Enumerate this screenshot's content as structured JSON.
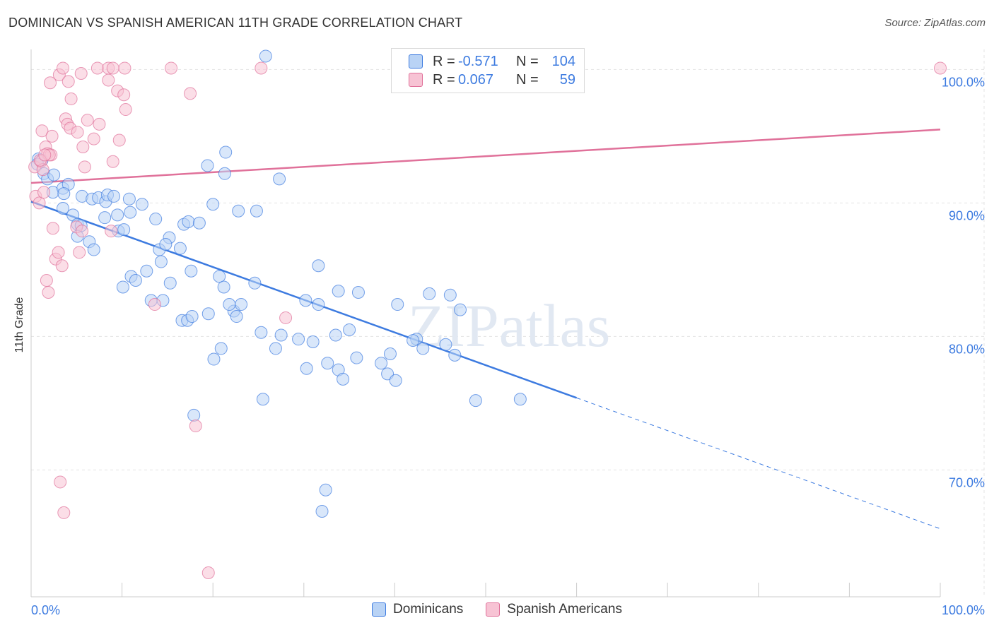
{
  "header": {
    "title": "DOMINICAN VS SPANISH AMERICAN 11TH GRADE CORRELATION CHART",
    "source": "Source: ZipAtlas.com"
  },
  "colors": {
    "blue": "#3d7be0",
    "blue_fill": "#b9d3f5",
    "pink": "#e0719a",
    "pink_fill": "#f7c3d4",
    "grid": "#e3e3e3",
    "axis_text": "#3d7be0"
  },
  "legend": {
    "rows": [
      {
        "r_label": "R =",
        "r_value": "-0.571",
        "n_label": "N =",
        "n_value": "104"
      },
      {
        "r_label": "R =",
        "r_value": "0.067",
        "n_label": "N =",
        "n_value": "59"
      }
    ]
  },
  "bottom_legend": [
    "Dominicans",
    "Spanish Americans"
  ],
  "chart_data": {
    "type": "scatter",
    "ylabel": "11th Grade",
    "xlim": [
      0,
      100
    ],
    "ylim": [
      60.5,
      101.5
    ],
    "x_tick_labels": [
      "0.0%",
      "100.0%"
    ],
    "y_ticks": [
      100,
      90,
      80,
      70
    ],
    "y_tick_labels": [
      "100.0%",
      "90.0%",
      "80.0%",
      "70.0%"
    ],
    "watermark": "ZIPatlas",
    "series": [
      {
        "name": "Dominicans",
        "r": -0.571,
        "n": 104,
        "trend": {
          "x0": 0,
          "y0": 90.1,
          "x1": 60,
          "y1": 75.4,
          "dash_to_x": 100,
          "dash_to_y": 65.6
        },
        "points": [
          [
            0.8,
            93.3
          ],
          [
            1.2,
            93.2
          ],
          [
            0.7,
            92.9
          ],
          [
            1.4,
            92.2
          ],
          [
            1.8,
            91.8
          ],
          [
            2.5,
            92.1
          ],
          [
            2.4,
            90.8
          ],
          [
            3.5,
            91.1
          ],
          [
            4.1,
            91.4
          ],
          [
            3.6,
            90.7
          ],
          [
            3.5,
            89.6
          ],
          [
            4.6,
            89.1
          ],
          [
            5.1,
            88.4
          ],
          [
            5.5,
            88.3
          ],
          [
            5.1,
            87.5
          ],
          [
            6.4,
            87.1
          ],
          [
            6.9,
            86.5
          ],
          [
            5.6,
            90.5
          ],
          [
            6.7,
            90.3
          ],
          [
            7.4,
            90.4
          ],
          [
            8.2,
            90.1
          ],
          [
            8.4,
            90.6
          ],
          [
            9.1,
            90.5
          ],
          [
            10.8,
            90.3
          ],
          [
            8.1,
            88.9
          ],
          [
            9.5,
            89.1
          ],
          [
            9.6,
            87.9
          ],
          [
            10.2,
            88.0
          ],
          [
            10.9,
            89.3
          ],
          [
            12.2,
            89.9
          ],
          [
            13.7,
            88.8
          ],
          [
            15.2,
            87.4
          ],
          [
            16.8,
            88.4
          ],
          [
            17.3,
            88.6
          ],
          [
            18.5,
            88.5
          ],
          [
            14.1,
            86.5
          ],
          [
            14.8,
            86.9
          ],
          [
            14.3,
            85.6
          ],
          [
            11.0,
            84.5
          ],
          [
            10.1,
            83.7
          ],
          [
            11.5,
            84.2
          ],
          [
            12.7,
            84.9
          ],
          [
            13.2,
            82.7
          ],
          [
            14.5,
            82.7
          ],
          [
            15.3,
            84.0
          ],
          [
            16.4,
            86.6
          ],
          [
            17.6,
            84.9
          ],
          [
            20.7,
            84.5
          ],
          [
            21.2,
            83.7
          ],
          [
            22.3,
            81.9
          ],
          [
            22.6,
            81.5
          ],
          [
            23.1,
            82.4
          ],
          [
            24.6,
            84.0
          ],
          [
            16.6,
            81.2
          ],
          [
            21.8,
            82.4
          ],
          [
            17.2,
            81.2
          ],
          [
            17.7,
            81.5
          ],
          [
            19.5,
            81.7
          ],
          [
            20.9,
            79.1
          ],
          [
            20.1,
            78.3
          ],
          [
            25.3,
            80.3
          ],
          [
            27.5,
            80.1
          ],
          [
            26.9,
            79.1
          ],
          [
            29.4,
            79.8
          ],
          [
            30.3,
            77.6
          ],
          [
            31.0,
            79.6
          ],
          [
            32.6,
            78.0
          ],
          [
            33.8,
            77.5
          ],
          [
            34.3,
            76.8
          ],
          [
            33.5,
            80.1
          ],
          [
            35.0,
            80.5
          ],
          [
            35.8,
            78.4
          ],
          [
            38.5,
            78.0
          ],
          [
            39.2,
            77.2
          ],
          [
            40.1,
            76.7
          ],
          [
            39.5,
            78.7
          ],
          [
            42.4,
            79.8
          ],
          [
            42.0,
            79.7
          ],
          [
            43.1,
            79.1
          ],
          [
            45.6,
            79.4
          ],
          [
            25.5,
            75.3
          ],
          [
            17.9,
            74.1
          ],
          [
            32.4,
            68.5
          ],
          [
            32.0,
            66.9
          ],
          [
            31.6,
            85.3
          ],
          [
            33.8,
            83.4
          ],
          [
            30.2,
            82.7
          ],
          [
            31.6,
            82.4
          ],
          [
            36.0,
            83.3
          ],
          [
            40.3,
            82.4
          ],
          [
            43.8,
            83.2
          ],
          [
            46.1,
            83.1
          ],
          [
            47.2,
            82.0
          ],
          [
            46.6,
            78.6
          ],
          [
            48.9,
            75.2
          ],
          [
            53.8,
            75.3
          ],
          [
            19.4,
            92.8
          ],
          [
            27.3,
            91.8
          ],
          [
            20.0,
            89.9
          ],
          [
            22.8,
            89.4
          ],
          [
            24.8,
            89.4
          ],
          [
            21.3,
            92.2
          ],
          [
            21.4,
            93.8
          ],
          [
            25.8,
            101.0
          ]
        ]
      },
      {
        "name": "Spanish Americans",
        "r": 0.067,
        "n": 59,
        "trend": {
          "x0": 0,
          "y0": 91.5,
          "x1": 100,
          "y1": 95.5
        },
        "points": [
          [
            0.4,
            92.7
          ],
          [
            0.5,
            90.5
          ],
          [
            0.9,
            90.0
          ],
          [
            1.1,
            93.1
          ],
          [
            1.3,
            92.5
          ],
          [
            1.2,
            95.4
          ],
          [
            1.6,
            94.2
          ],
          [
            1.8,
            93.7
          ],
          [
            2.2,
            93.6
          ],
          [
            2.3,
            95.0
          ],
          [
            1.4,
            90.8
          ],
          [
            2.0,
            93.6
          ],
          [
            2.1,
            99.0
          ],
          [
            3.1,
            99.6
          ],
          [
            3.5,
            100.1
          ],
          [
            3.8,
            96.3
          ],
          [
            4.0,
            95.9
          ],
          [
            4.3,
            95.6
          ],
          [
            4.1,
            99.1
          ],
          [
            4.4,
            97.8
          ],
          [
            5.1,
            95.3
          ],
          [
            5.5,
            99.7
          ],
          [
            5.7,
            94.2
          ],
          [
            5.9,
            92.7
          ],
          [
            6.2,
            96.2
          ],
          [
            6.9,
            94.8
          ],
          [
            7.5,
            95.9
          ],
          [
            7.3,
            100.1
          ],
          [
            8.5,
            100.1
          ],
          [
            8.5,
            99.2
          ],
          [
            9.5,
            98.4
          ],
          [
            9.0,
            100.1
          ],
          [
            10.2,
            98.1
          ],
          [
            10.4,
            97.0
          ],
          [
            9.7,
            94.7
          ],
          [
            9.0,
            93.1
          ],
          [
            10.3,
            100.1
          ],
          [
            15.4,
            100.1
          ],
          [
            17.5,
            98.2
          ],
          [
            25.3,
            100.1
          ],
          [
            2.4,
            88.1
          ],
          [
            2.7,
            85.8
          ],
          [
            3.0,
            86.3
          ],
          [
            3.4,
            85.3
          ],
          [
            5.0,
            88.2
          ],
          [
            5.6,
            87.9
          ],
          [
            5.3,
            86.3
          ],
          [
            8.8,
            87.9
          ],
          [
            1.7,
            84.2
          ],
          [
            1.9,
            83.3
          ],
          [
            13.6,
            82.4
          ],
          [
            28.0,
            81.4
          ],
          [
            18.1,
            73.3
          ],
          [
            3.2,
            69.1
          ],
          [
            3.6,
            66.8
          ],
          [
            19.5,
            62.3
          ],
          [
            1.0,
            93.2
          ],
          [
            1.5,
            93.6
          ],
          [
            100.0,
            100.1
          ]
        ]
      }
    ]
  }
}
